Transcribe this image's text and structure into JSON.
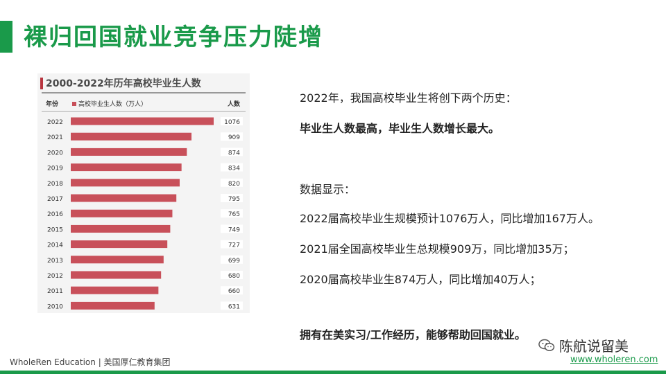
{
  "slide": {
    "title": "裸归回国就业竞争压力陡增"
  },
  "chart_data": {
    "type": "bar",
    "orientation": "horizontal",
    "title": "2000-2022年历年高校毕业生人数",
    "category_header": "年份",
    "value_header": "人数",
    "series": [
      {
        "name": "高校毕业生人数（万人）",
        "values": [
          1076,
          909,
          874,
          834,
          820,
          795,
          765,
          749,
          727,
          699,
          680,
          660,
          631
        ]
      }
    ],
    "categories": [
      "2022",
      "2021",
      "2020",
      "2019",
      "2018",
      "2017",
      "2016",
      "2015",
      "2014",
      "2013",
      "2012",
      "2011",
      "2010"
    ],
    "bar_color": "#c8505a"
  },
  "text": {
    "line1": "2022年，我国高校毕业生将创下两个历史：",
    "line2": "毕业生人数最高，毕业生人数增长最大。",
    "line3": "数据显示：",
    "line4": "2022届高校毕业生规模预计1076万人，同比增加167万人。",
    "line5": "2021届全国高校毕业生总规模909万，同比增加35万；",
    "line6": "2020届高校毕业生874万人，同比增加40万人；",
    "line7": "拥有在美实习/工作经历，能够帮助回国就业。"
  },
  "footer": {
    "company": "WholeRen Education | 美国厚仁教育集团",
    "brand": "陈航说留美",
    "url": "www.wholeren.com"
  },
  "colors": {
    "accent": "#1a9a4a",
    "bar": "#c8505a"
  }
}
